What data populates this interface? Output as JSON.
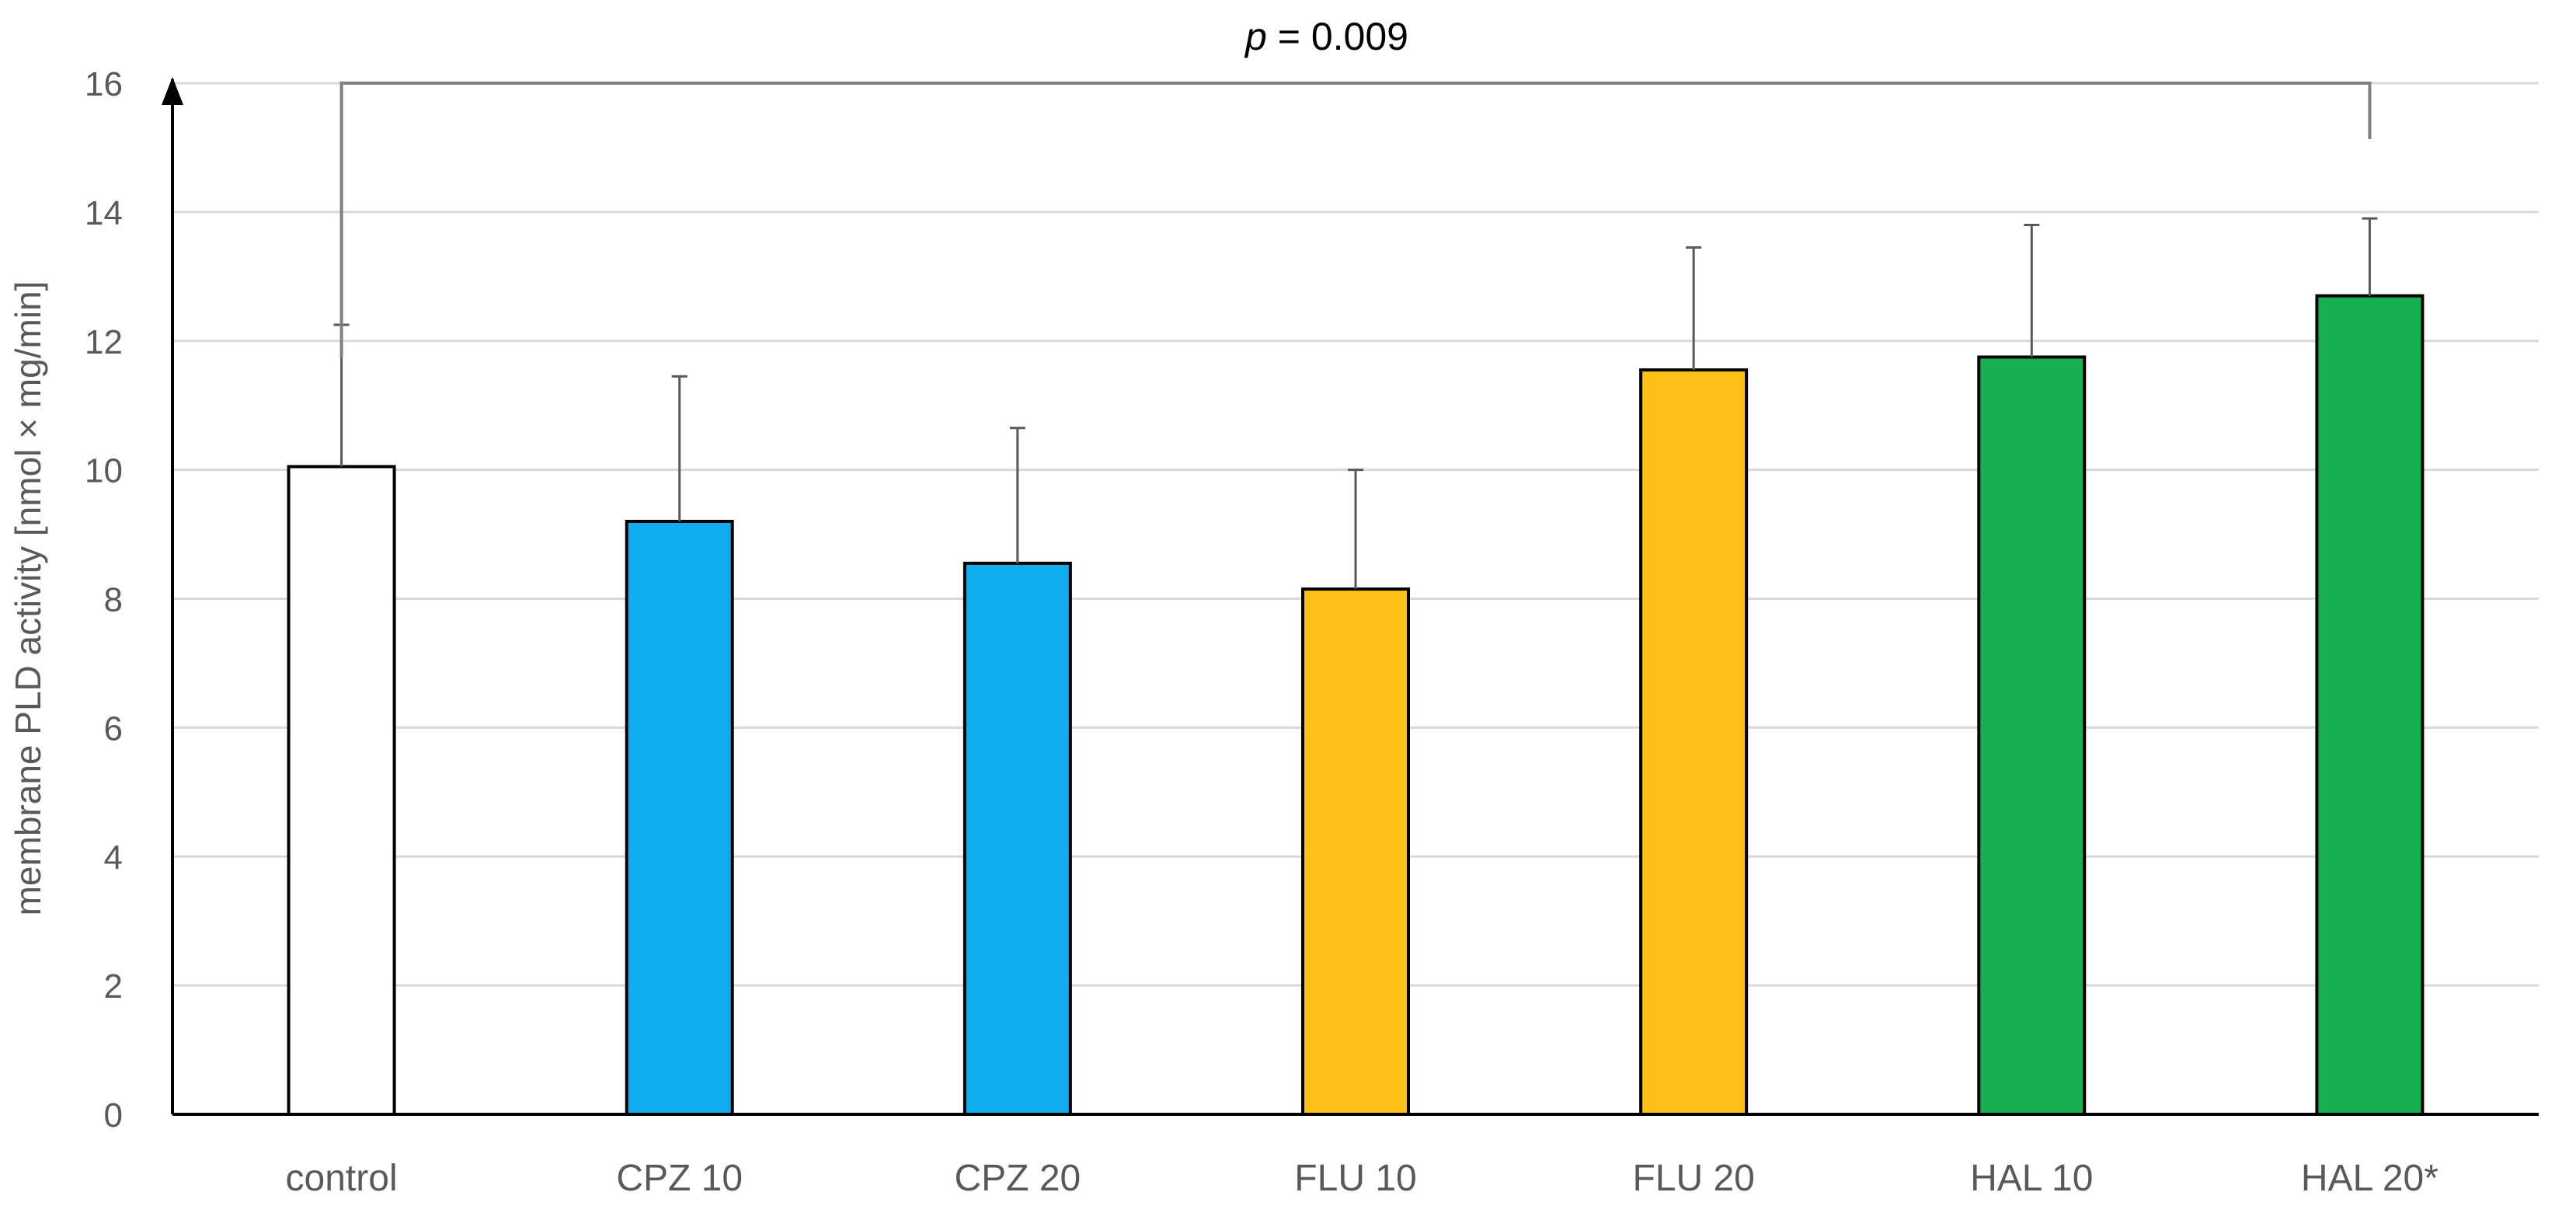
{
  "chart_data": {
    "type": "bar",
    "ylabel": "membrane PLD activity [nmol × mg/min]",
    "xlabel": "",
    "ylim": [
      0,
      16
    ],
    "yticks": [
      0,
      2,
      4,
      6,
      8,
      10,
      12,
      14,
      16
    ],
    "grid": true,
    "categories": [
      "control",
      "CPZ 10",
      "CPZ 20",
      "FLU 10",
      "FLU 20",
      "HAL 10",
      "HAL 20*"
    ],
    "values": [
      10.05,
      9.2,
      8.55,
      8.15,
      11.55,
      11.75,
      12.7
    ],
    "error_upper": [
      2.2,
      2.25,
      2.1,
      1.85,
      1.9,
      2.05,
      1.2
    ],
    "bar_colors": [
      "#ffffff",
      "#10aeef",
      "#10aeef",
      "#fcc016",
      "#fcc016",
      "#17b04e",
      "#17b04e"
    ],
    "annotation": {
      "p_symbol": "p",
      "p_text": " = 0.009",
      "from_category": "control",
      "to_category": "HAL 20*"
    }
  },
  "colors": {
    "grid": "#d9d9d9",
    "axis": "#000000",
    "error_bar": "#595959",
    "bracket": "#7f7f7f"
  }
}
